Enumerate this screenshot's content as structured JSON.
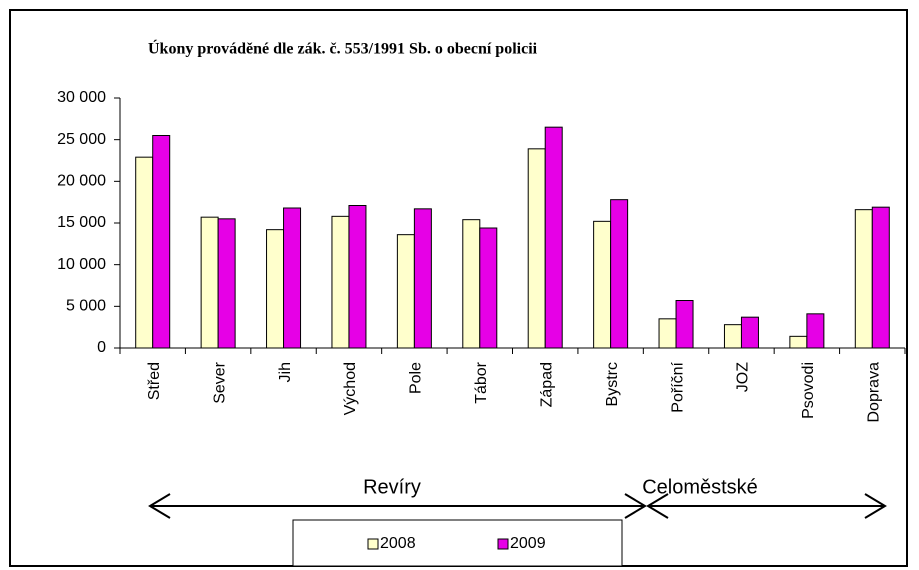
{
  "chart_data": {
    "type": "bar",
    "title": "Úkony prováděné dle zák. č. 553/1991 Sb. o obecní policii",
    "categories": [
      "Střed",
      "Sever",
      "Jih",
      "Východ",
      "Pole",
      "Tábor",
      "Západ",
      "Bystrc",
      "Poříční",
      "JOZ",
      "Psovodi",
      "Doprava"
    ],
    "series": [
      {
        "name": "2008",
        "color": "#ffffcc",
        "values": [
          22900,
          15700,
          14200,
          15800,
          13600,
          15400,
          23900,
          15200,
          3500,
          2800,
          1400,
          16600
        ]
      },
      {
        "name": "2009",
        "color": "#e600e6",
        "values": [
          25500,
          15500,
          16800,
          17100,
          16700,
          14400,
          26500,
          17800,
          5700,
          3700,
          4100,
          16900
        ]
      }
    ],
    "ylim": [
      0,
      30000
    ],
    "yticks": [
      0,
      {
        "value": 5000,
        "label": "5 000"
      },
      {
        "value": 10000,
        "label": "10 000"
      },
      {
        "value": 15000,
        "label": "15 000"
      },
      {
        "value": 20000,
        "label": "20 000"
      },
      {
        "value": 25000,
        "label": "25 000"
      },
      {
        "value": 30000,
        "label": "30 000"
      }
    ],
    "grid": false,
    "legend": "bottom",
    "annotations": [
      "Revíry",
      "Celoměstské"
    ]
  }
}
